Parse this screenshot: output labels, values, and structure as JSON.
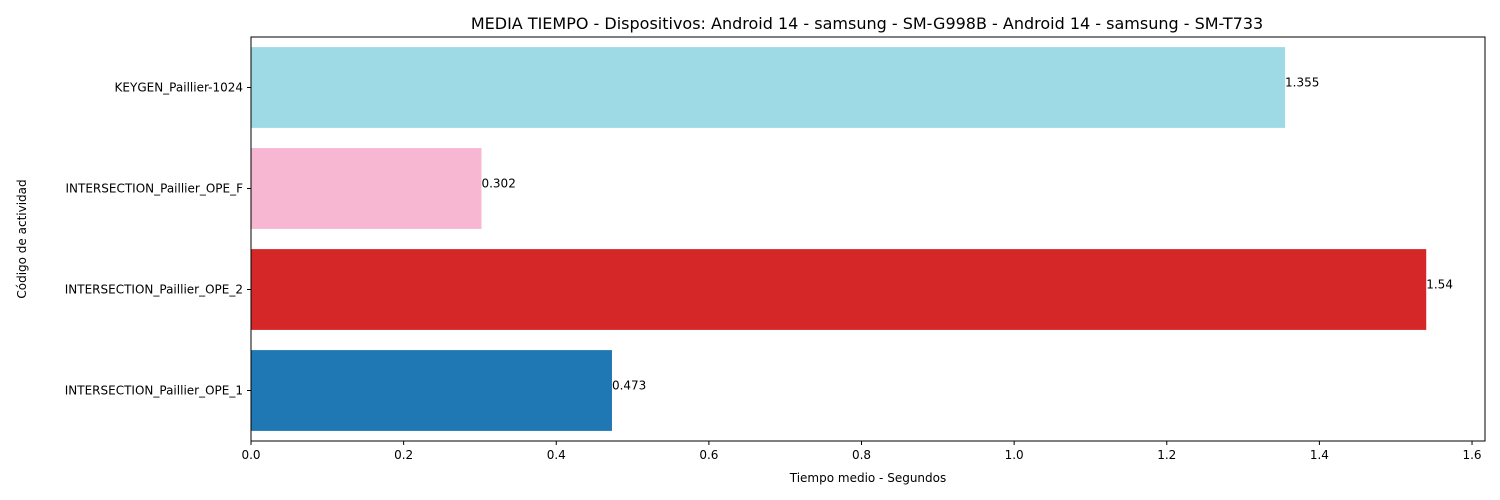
{
  "chart_data": {
    "type": "bar",
    "orientation": "horizontal",
    "title": "MEDIA TIEMPO - Dispositivos: Android 14 - samsung - SM-G998B - Android 14 - samsung - SM-T733",
    "xlabel": "Tiempo medio - Segundos",
    "ylabel": "Código de actividad",
    "categories": [
      "INTERSECTION_Paillier_OPE_1",
      "INTERSECTION_Paillier_OPE_2",
      "INTERSECTION_Paillier_OPE_F",
      "KEYGEN_Paillier-1024"
    ],
    "values": [
      0.473,
      1.54,
      0.302,
      1.355
    ],
    "value_labels": [
      "0.473",
      "1.54",
      "0.302",
      "1.355"
    ],
    "colors": [
      "#1f77b4",
      "#d62728",
      "#f7b6d2",
      "#9edae5"
    ],
    "xlim": [
      0,
      1.617
    ],
    "xticks": [
      0.0,
      0.2,
      0.4,
      0.6,
      0.8,
      1.0,
      1.2,
      1.4,
      1.6
    ],
    "xtick_labels": [
      "0.0",
      "0.2",
      "0.4",
      "0.6",
      "0.8",
      "1.0",
      "1.2",
      "1.4",
      "1.6"
    ],
    "grid": false,
    "legend": false
  }
}
